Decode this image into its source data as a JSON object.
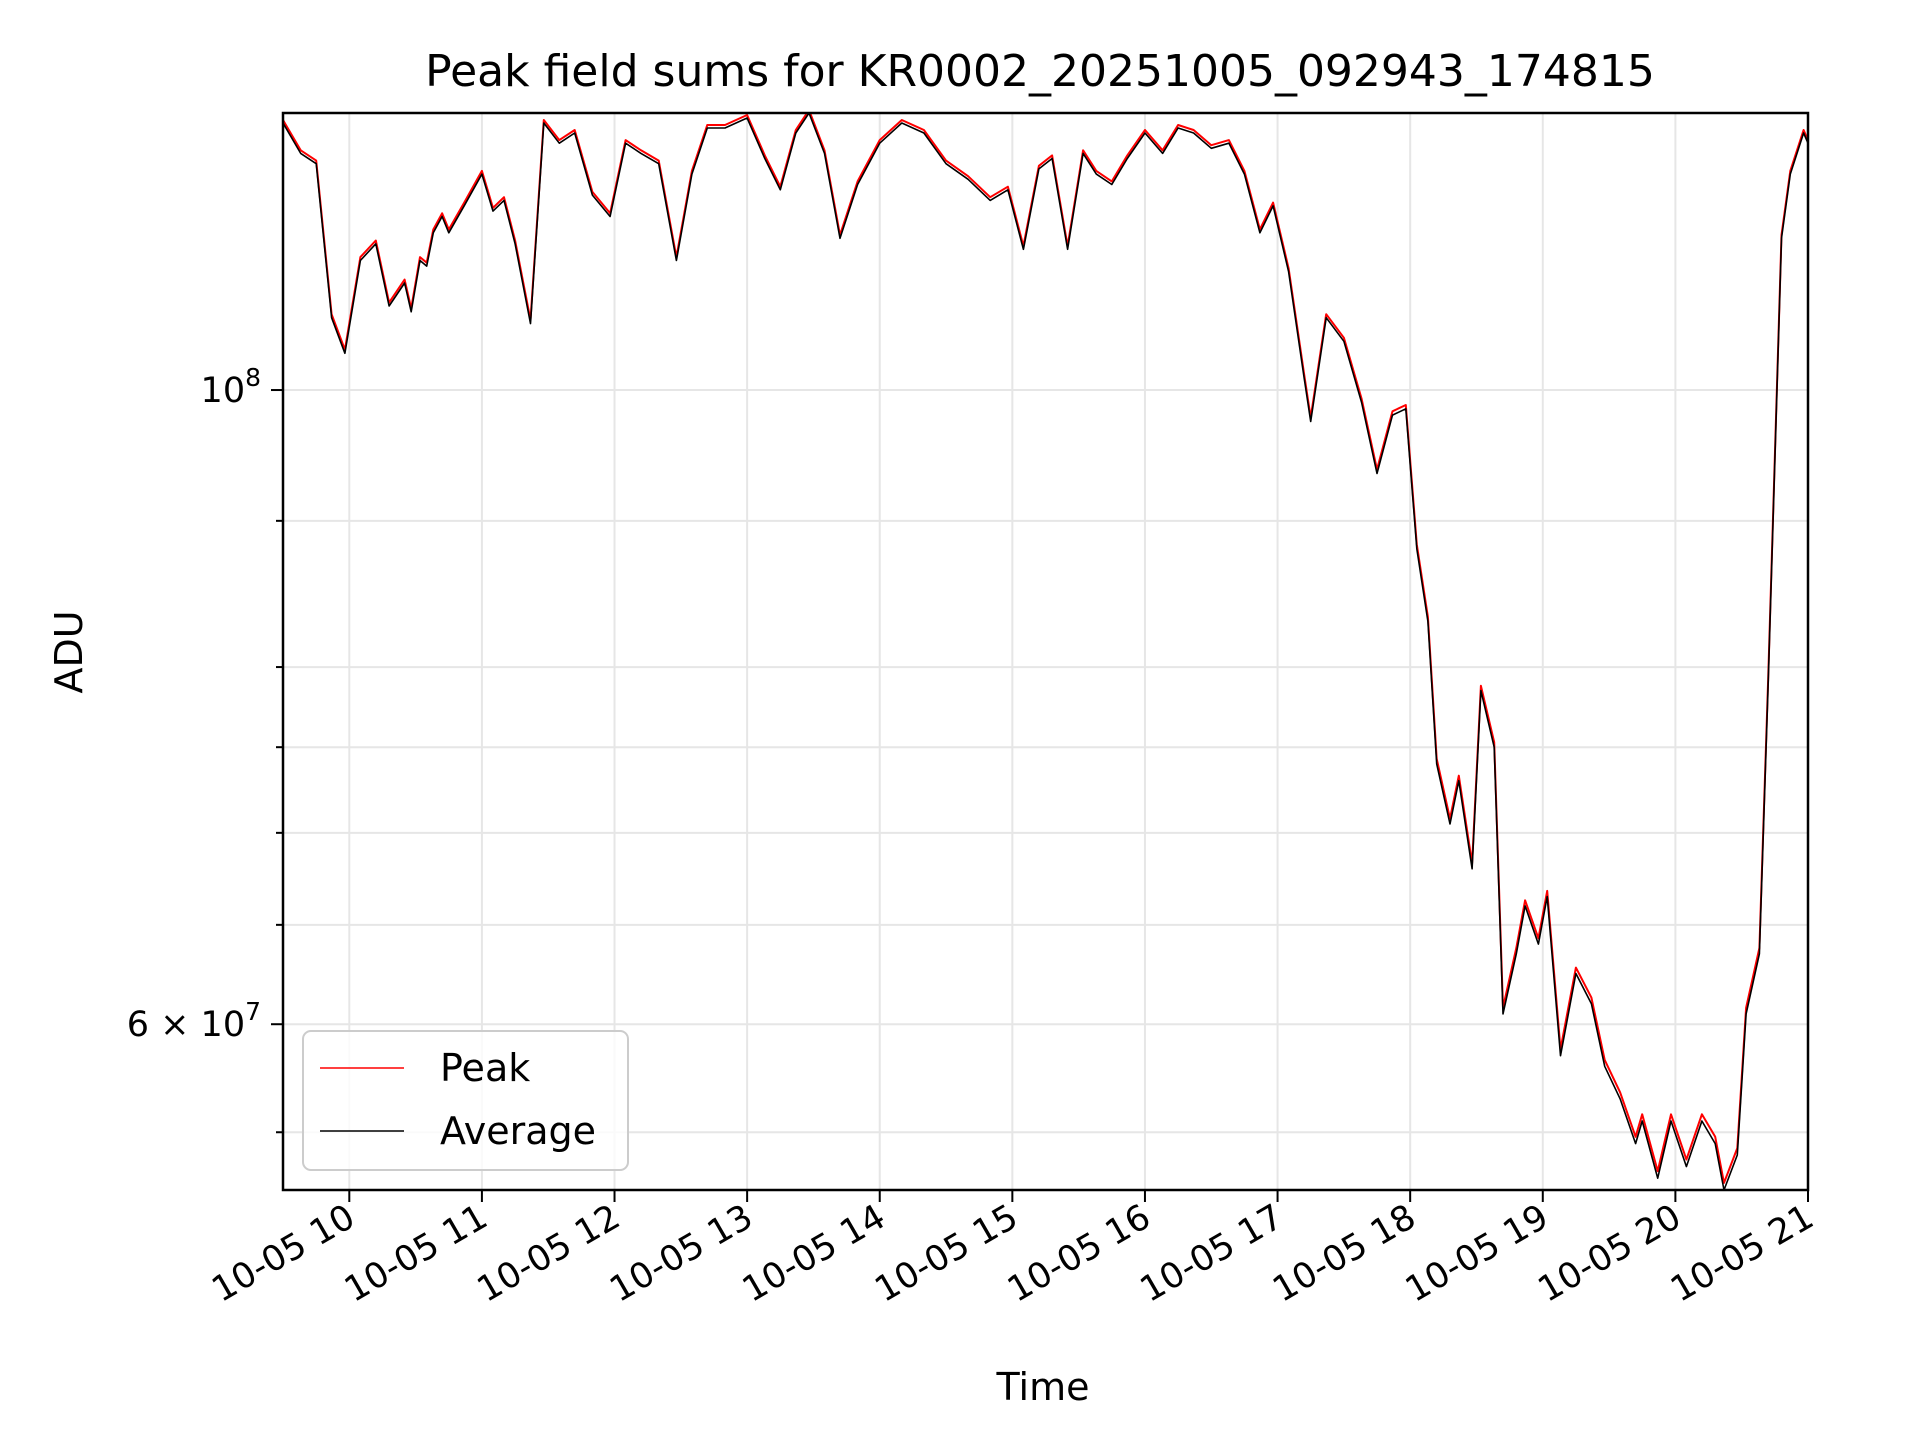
{
  "chart_data": {
    "type": "line",
    "title": "Peak field sums for KR0002_20251005_092943_174815",
    "xlabel": "Time",
    "ylabel": "ADU",
    "y_scale": "log",
    "ylim": [
      52500000,
      125000000
    ],
    "xlim": [
      "2025-10-05T09:30",
      "2025-10-05T21:00"
    ],
    "grid": true,
    "legend_position": "lower-left",
    "x_ticks": [
      {
        "value": "2025-10-05T10:00",
        "label": "10-05 10"
      },
      {
        "value": "2025-10-05T11:00",
        "label": "10-05 11"
      },
      {
        "value": "2025-10-05T12:00",
        "label": "10-05 12"
      },
      {
        "value": "2025-10-05T13:00",
        "label": "10-05 13"
      },
      {
        "value": "2025-10-05T14:00",
        "label": "10-05 14"
      },
      {
        "value": "2025-10-05T15:00",
        "label": "10-05 15"
      },
      {
        "value": "2025-10-05T16:00",
        "label": "10-05 16"
      },
      {
        "value": "2025-10-05T17:00",
        "label": "10-05 17"
      },
      {
        "value": "2025-10-05T18:00",
        "label": "10-05 18"
      },
      {
        "value": "2025-10-05T19:00",
        "label": "10-05 19"
      },
      {
        "value": "2025-10-05T20:00",
        "label": "10-05 20"
      },
      {
        "value": "2025-10-05T21:00",
        "label": "10-05 21"
      }
    ],
    "y_major_ticks": [
      {
        "value": 100000000,
        "base": "10",
        "exp": "8"
      },
      {
        "value": 60000000,
        "base": "6 × 10",
        "exp": "7"
      }
    ],
    "y_minor_ticks": [
      55000000,
      65000000,
      70000000,
      75000000,
      80000000,
      90000000
    ],
    "x": [
      "2025-10-05T09:30",
      "2025-10-05T09:38",
      "2025-10-05T09:45",
      "2025-10-05T09:52",
      "2025-10-05T09:58",
      "2025-10-05T10:05",
      "2025-10-05T10:12",
      "2025-10-05T10:18",
      "2025-10-05T10:25",
      "2025-10-05T10:28",
      "2025-10-05T10:32",
      "2025-10-05T10:35",
      "2025-10-05T10:38",
      "2025-10-05T10:42",
      "2025-10-05T10:45",
      "2025-10-05T10:52",
      "2025-10-05T11:00",
      "2025-10-05T11:05",
      "2025-10-05T11:10",
      "2025-10-05T11:15",
      "2025-10-05T11:22",
      "2025-10-05T11:28",
      "2025-10-05T11:35",
      "2025-10-05T11:42",
      "2025-10-05T11:50",
      "2025-10-05T11:58",
      "2025-10-05T12:05",
      "2025-10-05T12:12",
      "2025-10-05T12:20",
      "2025-10-05T12:28",
      "2025-10-05T12:35",
      "2025-10-05T12:42",
      "2025-10-05T12:50",
      "2025-10-05T13:00",
      "2025-10-05T13:08",
      "2025-10-05T13:15",
      "2025-10-05T13:22",
      "2025-10-05T13:28",
      "2025-10-05T13:35",
      "2025-10-05T13:42",
      "2025-10-05T13:50",
      "2025-10-05T14:00",
      "2025-10-05T14:10",
      "2025-10-05T14:20",
      "2025-10-05T14:30",
      "2025-10-05T14:40",
      "2025-10-05T14:50",
      "2025-10-05T14:58",
      "2025-10-05T15:05",
      "2025-10-05T15:12",
      "2025-10-05T15:18",
      "2025-10-05T15:25",
      "2025-10-05T15:32",
      "2025-10-05T15:38",
      "2025-10-05T15:45",
      "2025-10-05T15:52",
      "2025-10-05T16:00",
      "2025-10-05T16:08",
      "2025-10-05T16:15",
      "2025-10-05T16:22",
      "2025-10-05T16:30",
      "2025-10-05T16:38",
      "2025-10-05T16:45",
      "2025-10-05T16:52",
      "2025-10-05T16:58",
      "2025-10-05T17:05",
      "2025-10-05T17:12",
      "2025-10-05T17:15",
      "2025-10-05T17:22",
      "2025-10-05T17:30",
      "2025-10-05T17:38",
      "2025-10-05T17:45",
      "2025-10-05T17:52",
      "2025-10-05T17:58",
      "2025-10-05T18:03",
      "2025-10-05T18:08",
      "2025-10-05T18:12",
      "2025-10-05T18:18",
      "2025-10-05T18:22",
      "2025-10-05T18:28",
      "2025-10-05T18:32",
      "2025-10-05T18:38",
      "2025-10-05T18:42",
      "2025-10-05T18:48",
      "2025-10-05T18:52",
      "2025-10-05T18:58",
      "2025-10-05T19:02",
      "2025-10-05T19:08",
      "2025-10-05T19:15",
      "2025-10-05T19:22",
      "2025-10-05T19:28",
      "2025-10-05T19:35",
      "2025-10-05T19:42",
      "2025-10-05T19:45",
      "2025-10-05T19:52",
      "2025-10-05T19:58",
      "2025-10-05T20:05",
      "2025-10-05T20:12",
      "2025-10-05T20:18",
      "2025-10-05T20:22",
      "2025-10-05T20:28",
      "2025-10-05T20:32",
      "2025-10-05T20:38",
      "2025-10-05T20:42",
      "2025-10-05T20:48",
      "2025-10-05T20:52",
      "2025-10-05T20:58",
      "2025-10-05T21:00"
    ],
    "series": [
      {
        "name": "Average",
        "color": "#000000",
        "values": [
          124000000,
          121000000,
          120000000,
          106000000,
          103000000,
          111000000,
          112500000,
          107000000,
          109000000,
          106500000,
          111000000,
          110500000,
          113500000,
          115000000,
          113500000,
          116000000,
          119000000,
          115500000,
          116500000,
          112500000,
          105500000,
          124000000,
          122000000,
          123000000,
          117000000,
          115000000,
          122000000,
          121000000,
          120000000,
          111000000,
          119000000,
          123500000,
          123500000,
          124500000,
          120500000,
          117500000,
          123000000,
          125000000,
          121000000,
          113000000,
          118000000,
          122000000,
          124000000,
          123000000,
          120000000,
          118500000,
          116500000,
          117500000,
          112000000,
          119500000,
          120500000,
          112000000,
          121000000,
          119000000,
          118000000,
          120500000,
          123000000,
          121000000,
          123500000,
          123000000,
          121500000,
          122000000,
          119000000,
          113500000,
          116000000,
          110000000,
          101000000,
          97500000,
          106000000,
          104000000,
          99000000,
          93500000,
          98000000,
          98500000,
          88000000,
          83000000,
          74000000,
          70500000,
          73000000,
          68000000,
          78500000,
          75000000,
          60500000,
          63500000,
          66000000,
          64000000,
          66500000,
          58500000,
          62500000,
          61000000,
          58000000,
          56500000,
          54500000,
          55500000,
          53000000,
          55500000,
          53500000,
          55500000,
          54500000,
          52500000,
          54000000,
          60500000,
          63500000,
          79000000,
          113000000,
          119000000,
          123000000,
          122000000
        ]
      },
      {
        "name": "Peak",
        "color": "#ff0000",
        "values": [
          124300000,
          121300000,
          120300000,
          106300000,
          103300000,
          111300000,
          112800000,
          107300000,
          109300000,
          106800000,
          111300000,
          110800000,
          113800000,
          115300000,
          113800000,
          116300000,
          119300000,
          115800000,
          116800000,
          112800000,
          105800000,
          124300000,
          122300000,
          123300000,
          117300000,
          115300000,
          122300000,
          121300000,
          120300000,
          111300000,
          119300000,
          123800000,
          123800000,
          124800000,
          120800000,
          117800000,
          123300000,
          125300000,
          121300000,
          113300000,
          118300000,
          122300000,
          124300000,
          123300000,
          120300000,
          118800000,
          116800000,
          117800000,
          112300000,
          119800000,
          120800000,
          112300000,
          121300000,
          119300000,
          118300000,
          120800000,
          123300000,
          121300000,
          123800000,
          123300000,
          121800000,
          122300000,
          119300000,
          113800000,
          116300000,
          110300000,
          101300000,
          97800000,
          106300000,
          104300000,
          99300000,
          93800000,
          98300000,
          98800000,
          88300000,
          83300000,
          74300000,
          70800000,
          73300000,
          68300000,
          78800000,
          75300000,
          60800000,
          63800000,
          66300000,
          64300000,
          66800000,
          58800000,
          62800000,
          61300000,
          58300000,
          56800000,
          54800000,
          55800000,
          53300000,
          55800000,
          53800000,
          55800000,
          54800000,
          52800000,
          54300000,
          60800000,
          63800000,
          79300000,
          113300000,
          119300000,
          123300000,
          122300000
        ]
      }
    ],
    "legend": [
      {
        "name": "Peak",
        "color": "#ff0000"
      },
      {
        "name": "Average",
        "color": "#000000"
      }
    ]
  }
}
